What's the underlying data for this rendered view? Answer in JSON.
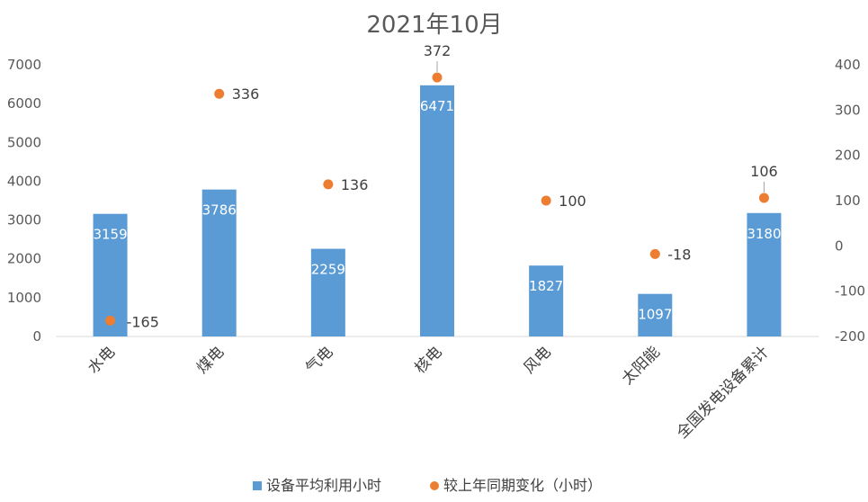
{
  "chart_data": {
    "type": "bar",
    "title": "2021年10月",
    "categories": [
      "水电",
      "煤电",
      "气电",
      "核电",
      "风电",
      "太阳能",
      "全国发电设备累计"
    ],
    "series": [
      {
        "name": "设备平均利用小时",
        "type": "bar",
        "axis": "left",
        "color": "#5B9BD5",
        "values": [
          3159,
          3786,
          2259,
          6471,
          1827,
          1097,
          3180
        ]
      },
      {
        "name": "较上年同期变化（小时）",
        "type": "scatter",
        "axis": "right",
        "color": "#ED7D31",
        "values": [
          -165,
          336,
          136,
          372,
          100,
          -18,
          106
        ]
      }
    ],
    "y_left": {
      "min": 0,
      "max": 7000,
      "ticks": [
        "0",
        "1000",
        "2000",
        "3000",
        "4000",
        "5000",
        "6000",
        "7000"
      ]
    },
    "y_right": {
      "min": -200,
      "max": 400,
      "ticks": [
        "-200",
        "-100",
        "0",
        "100",
        "200",
        "300",
        "400"
      ]
    },
    "legend_position": "bottom",
    "grid": false
  }
}
